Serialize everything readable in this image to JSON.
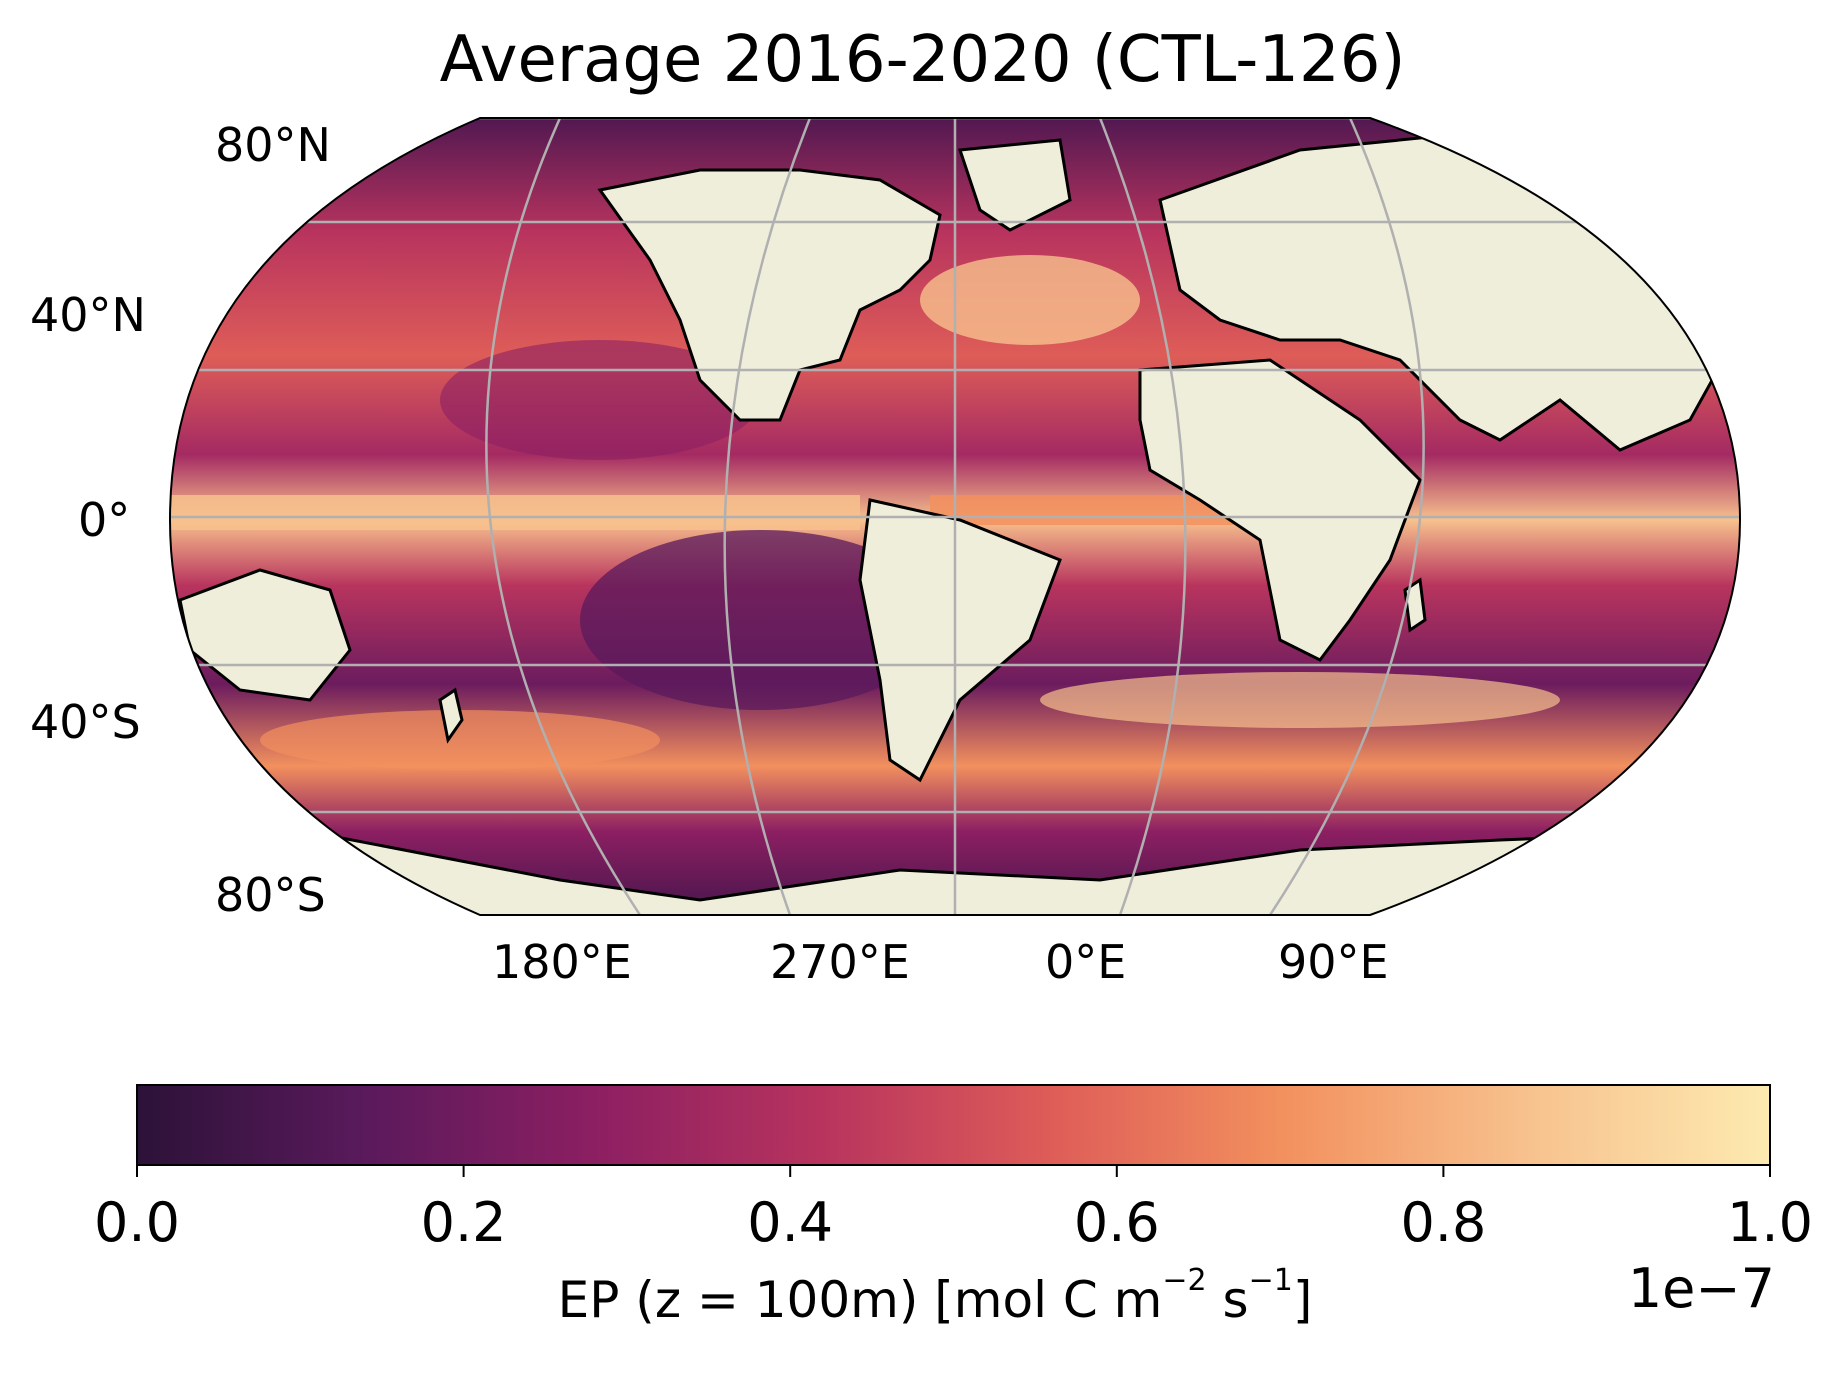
{
  "title": "Average 2016-2020 (CTL-126)",
  "lat_labels": [
    "80°N",
    "40°N",
    "0°",
    "40°S",
    "80°S"
  ],
  "lon_labels": [
    "180°E",
    "270°E",
    "0°E",
    "90°E"
  ],
  "colorbar": {
    "tick_labels": [
      "0.0",
      "0.2",
      "0.4",
      "0.6",
      "0.8",
      "1.0"
    ],
    "label_prefix": "EP (z = 100m) [mol C m",
    "label_exp1": "−2",
    "label_mid": " s",
    "label_exp2": "−1",
    "label_suffix": "]",
    "scale_exponent": "1e−7",
    "colormap": "rocket",
    "range": [
      0.0,
      1.0
    ],
    "colors": [
      "#2c1238",
      "#5a1a5c",
      "#8c1f62",
      "#b8345e",
      "#de5d58",
      "#f2905e",
      "#f7c18d",
      "#fdeab0"
    ]
  },
  "colors": {
    "land": "#efeedb",
    "coast": "#000000",
    "grid": "#b0b0b0"
  }
}
